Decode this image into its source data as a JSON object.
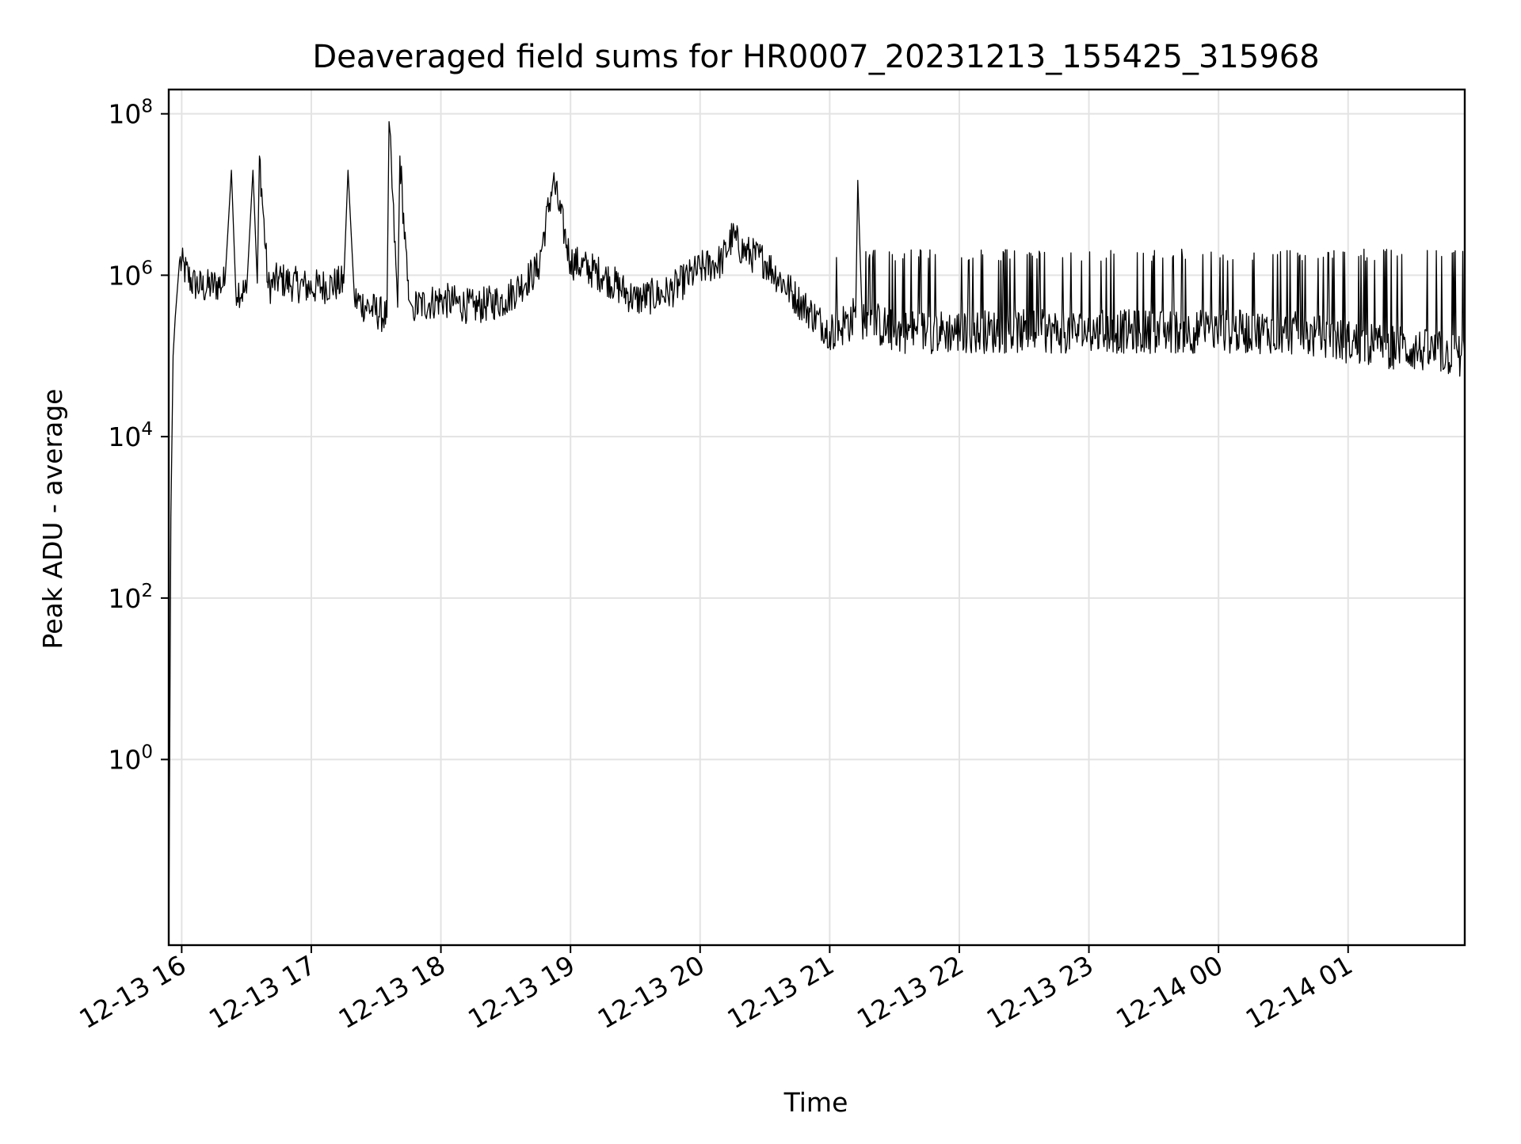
{
  "chart_data": {
    "type": "line",
    "title": "Deaveraged field sums for HR0007_20231213_155425_315968",
    "xlabel": "Time",
    "ylabel": "Peak ADU - average",
    "yscale": "log",
    "grid": true,
    "legend": "none",
    "xlim": [
      "2023-12-13 15:54",
      "2023-12-14 01:54"
    ],
    "ylim": [
      0.005,
      200000000
    ],
    "x_ticks": [
      "12-13 16",
      "12-13 17",
      "12-13 18",
      "12-13 19",
      "12-13 20",
      "12-13 21",
      "12-13 22",
      "12-13 23",
      "12-14 00",
      "12-14 01"
    ],
    "y_ticks": [
      {
        "value": 1,
        "base": "10",
        "exp": "0"
      },
      {
        "value": 100,
        "base": "10",
        "exp": "2"
      },
      {
        "value": 10000,
        "base": "10",
        "exp": "4"
      },
      {
        "value": 1000000,
        "base": "10",
        "exp": "6"
      },
      {
        "value": 100000000,
        "base": "10",
        "exp": "8"
      }
    ],
    "line_color": "#000000",
    "series": [
      {
        "x": [
          "2023-12-13 15:54",
          "2023-12-13 15:55",
          "2023-12-13 15:56",
          "2023-12-13 15:57",
          "2023-12-13 15:59",
          "2023-12-13 16:05",
          "2023-12-13 16:10",
          "2023-12-13 16:20",
          "2023-12-13 16:23",
          "2023-12-13 16:25",
          "2023-12-13 16:30",
          "2023-12-13 16:33",
          "2023-12-13 16:35",
          "2023-12-13 16:36",
          "2023-12-13 16:40",
          "2023-12-13 16:45",
          "2023-12-13 16:50",
          "2023-12-13 17:00",
          "2023-12-13 17:15",
          "2023-12-13 17:17",
          "2023-12-13 17:20",
          "2023-12-13 17:35",
          "2023-12-13 17:36",
          "2023-12-13 17:40",
          "2023-12-13 17:41",
          "2023-12-13 17:45",
          "2023-12-13 17:47",
          "2023-12-13 18:00",
          "2023-12-13 18:15",
          "2023-12-13 18:30",
          "2023-12-13 18:45",
          "2023-12-13 18:52",
          "2023-12-13 19:00",
          "2023-12-13 19:15",
          "2023-12-13 19:30",
          "2023-12-13 19:45",
          "2023-12-13 20:00",
          "2023-12-13 20:10",
          "2023-12-13 20:15",
          "2023-12-13 20:20",
          "2023-12-13 20:30",
          "2023-12-13 20:45",
          "2023-12-13 21:00",
          "2023-12-13 21:12",
          "2023-12-13 21:13",
          "2023-12-13 21:15",
          "2023-12-13 21:30",
          "2023-12-13 21:45",
          "2023-12-13 22:00",
          "2023-12-13 22:30",
          "2023-12-13 23:00",
          "2023-12-13 23:30",
          "2023-12-14 00:00",
          "2023-12-14 00:30",
          "2023-12-14 01:00",
          "2023-12-14 01:30",
          "2023-12-14 01:54"
        ],
        "y": [
          0.005,
          1000,
          100000,
          300000,
          1500000,
          800000,
          700000,
          800000,
          20000000,
          700000,
          600000,
          20000000,
          800000,
          30000000,
          700000,
          900000,
          800000,
          700000,
          800000,
          20000000,
          500000,
          300000,
          80000000,
          400000,
          30000000,
          500000,
          400000,
          500000,
          400000,
          500000,
          1200000,
          15000000,
          1500000,
          1000000,
          500000,
          600000,
          1200000,
          1500000,
          3000000,
          2000000,
          1500000,
          500000,
          200000,
          300000,
          15000000,
          300000,
          200000,
          200000,
          200000,
          200000,
          200000,
          200000,
          200000,
          200000,
          150000,
          120000,
          100000
        ]
      }
    ]
  }
}
